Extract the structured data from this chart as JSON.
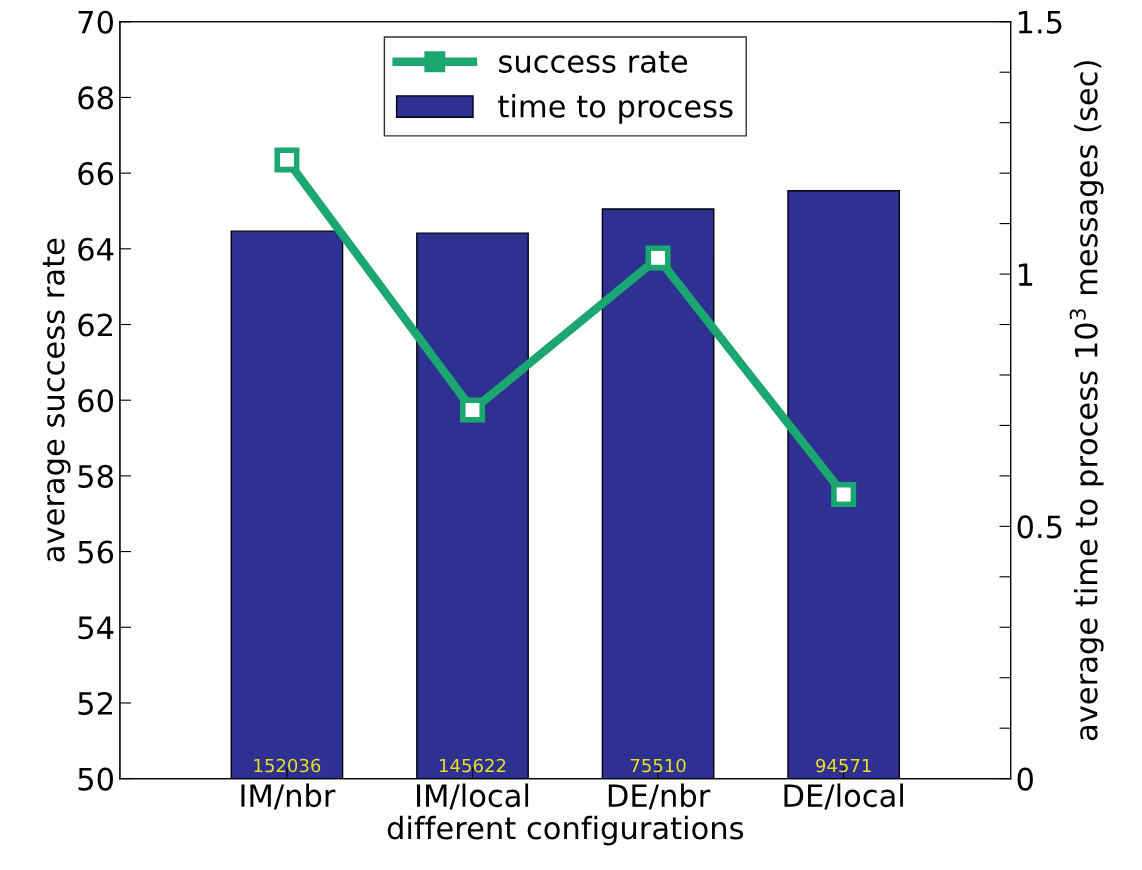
{
  "chart_data": {
    "type": "bar",
    "xlabel": "different configurations",
    "ylabel": "average success rate",
    "y2label": "average time to process 10$^{3}$ messages (sec)",
    "categories": [
      "IM/nbr",
      "IM/local",
      "DE/nbr",
      "DE/local"
    ],
    "series": [
      {
        "name": "success rate",
        "type": "line",
        "color": "#1aa870",
        "values": [
          66.35,
          59.74,
          63.76,
          57.51
        ],
        "marker": "square",
        "line_style": "solid"
      },
      {
        "name": "time to process",
        "axis": "y2",
        "color": "#2e3192",
        "values": [
          1.085,
          1.081,
          1.129,
          1.165
        ]
      }
    ],
    "annotations": [
      "152036",
      "145622",
      "75510",
      "94571"
    ],
    "ylim": [
      50,
      70
    ],
    "yticks": [
      50,
      52,
      54,
      56,
      58,
      60,
      62,
      64,
      66,
      68,
      70
    ],
    "y2lim": [
      0,
      1.5
    ],
    "y2ticks": [
      0,
      {
        "value": 0.1,
        "label": null
      },
      {
        "value": 0.2,
        "label": null
      },
      {
        "value": 0.3,
        "label": null
      },
      {
        "value": 0.4,
        "label": null
      },
      0.5,
      {
        "value": 0.6,
        "label": null
      },
      {
        "value": 0.7,
        "label": null
      },
      {
        "value": 0.8,
        "label": null
      },
      {
        "value": 0.9,
        "label": null
      },
      1,
      {
        "value": 1.1,
        "label": null
      },
      {
        "value": 1.2,
        "label": null
      },
      {
        "value": 1.3,
        "label": null
      },
      {
        "value": 1.4,
        "label": null
      },
      1.5
    ],
    "grid": false,
    "legend": "top"
  }
}
